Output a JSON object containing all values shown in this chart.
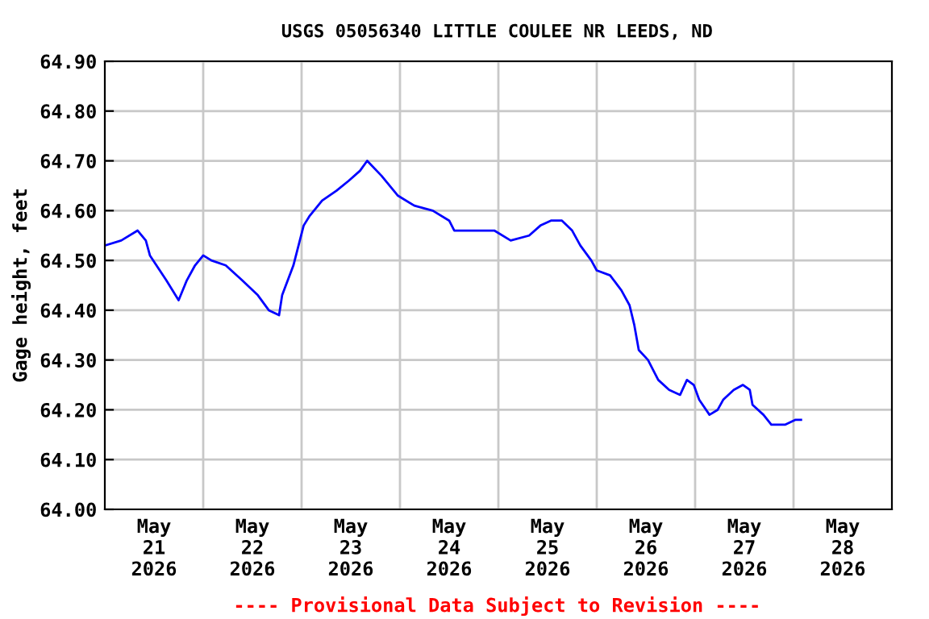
{
  "chart_data": {
    "type": "line",
    "title": "USGS 05056340 LITTLE COULEE NR LEEDS, ND",
    "ylabel": "Gage height, feet",
    "annotations": [
      "---- Provisional Data Subject to Revision ----"
    ],
    "x": [
      "2026-05-21T00:00",
      "2026-05-21T04:00",
      "2026-05-21T08:00",
      "2026-05-21T10:00",
      "2026-05-21T11:00",
      "2026-05-21T15:00",
      "2026-05-21T18:00",
      "2026-05-21T20:00",
      "2026-05-21T22:00",
      "2026-05-22T00:00",
      "2026-05-22T02:00",
      "2026-05-22T05:30",
      "2026-05-22T09:30",
      "2026-05-22T13:20",
      "2026-05-22T16:00",
      "2026-05-22T18:30",
      "2026-05-22T19:15",
      "2026-05-22T22:00",
      "2026-05-23T00:30",
      "2026-05-23T02:00",
      "2026-05-23T05:00",
      "2026-05-23T08:30",
      "2026-05-23T11:30",
      "2026-05-23T14:15",
      "2026-05-23T16:00",
      "2026-05-23T19:30",
      "2026-05-23T23:30",
      "2026-05-24T03:30",
      "2026-05-24T08:00",
      "2026-05-24T12:00",
      "2026-05-24T13:15",
      "2026-05-24T20:30",
      "2026-05-24T23:00",
      "2026-05-25T03:00",
      "2026-05-25T07:30",
      "2026-05-25T10:15",
      "2026-05-25T12:50",
      "2026-05-25T15:30",
      "2026-05-25T18:00",
      "2026-05-25T20:00",
      "2026-05-25T22:40",
      "2026-05-26T00:00",
      "2026-05-26T03:15",
      "2026-05-26T06:00",
      "2026-05-26T08:00",
      "2026-05-26T09:10",
      "2026-05-26T10:15",
      "2026-05-26T12:30",
      "2026-05-26T15:00",
      "2026-05-26T17:40",
      "2026-05-26T20:20",
      "2026-05-26T22:00",
      "2026-05-26T23:40",
      "2026-05-27T01:00",
      "2026-05-27T03:30",
      "2026-05-27T05:30",
      "2026-05-27T06:50",
      "2026-05-27T09:25",
      "2026-05-27T11:40",
      "2026-05-27T13:20",
      "2026-05-27T14:00",
      "2026-05-27T16:40",
      "2026-05-27T18:35",
      "2026-05-27T21:55",
      "2026-05-28T00:30",
      "2026-05-28T01:50"
    ],
    "series": [
      {
        "color": "#0000ff",
        "values": [
          64.53,
          64.54,
          64.56,
          64.54,
          64.51,
          64.46,
          64.42,
          64.46,
          64.49,
          64.51,
          64.5,
          64.49,
          64.46,
          64.43,
          64.4,
          64.39,
          64.43,
          64.49,
          64.57,
          64.59,
          64.62,
          64.64,
          64.66,
          64.68,
          64.7,
          64.67,
          64.63,
          64.61,
          64.6,
          64.58,
          64.56,
          64.56,
          64.56,
          64.54,
          64.55,
          64.57,
          64.58,
          64.58,
          64.56,
          64.53,
          64.5,
          64.48,
          64.47,
          64.44,
          64.41,
          64.37,
          64.32,
          64.3,
          64.26,
          64.24,
          64.23,
          64.26,
          64.25,
          64.22,
          64.19,
          64.2,
          64.22,
          64.24,
          64.25,
          64.24,
          64.21,
          64.19,
          64.17,
          64.17,
          64.18,
          64.18
        ]
      }
    ],
    "xlim": [
      "2026-05-21T00:00",
      "2026-05-29T00:00"
    ],
    "xticks": [
      {
        "value": "2026-05-21T12:00",
        "label": "May\n21\n2026"
      },
      {
        "value": "2026-05-22T12:00",
        "label": "May\n22\n2026"
      },
      {
        "value": "2026-05-23T12:00",
        "label": "May\n23\n2026"
      },
      {
        "value": "2026-05-24T12:00",
        "label": "May\n24\n2026"
      },
      {
        "value": "2026-05-25T12:00",
        "label": "May\n25\n2026"
      },
      {
        "value": "2026-05-26T12:00",
        "label": "May\n26\n2026"
      },
      {
        "value": "2026-05-27T12:00",
        "label": "May\n27\n2026"
      },
      {
        "value": "2026-05-28T12:00",
        "label": "May\n28\n2026"
      },
      {
        "value": "2026-05-22T00:00:00",
        "label": null
      },
      {
        "value": "2026-05-23T00:00:00",
        "label": null
      },
      {
        "value": "2026-05-24T00:00:00",
        "label": null
      },
      {
        "value": "2026-05-25T00:00:00",
        "label": null
      },
      {
        "value": "2026-05-26T00:00:00",
        "label": null
      },
      {
        "value": "2026-05-27T00:00:00",
        "label": null
      },
      {
        "value": "2026-05-28T00:00:00",
        "label": null
      }
    ],
    "ylim": [
      64.0,
      64.9
    ],
    "yticks": [
      {
        "value": 64.0,
        "label": "64.00"
      },
      {
        "value": 64.1,
        "label": "64.10"
      },
      {
        "value": 64.2,
        "label": "64.20"
      },
      {
        "value": 64.3,
        "label": "64.30"
      },
      {
        "value": 64.4,
        "label": "64.40"
      },
      {
        "value": 64.5,
        "label": "64.50"
      },
      {
        "value": 64.6,
        "label": "64.60"
      },
      {
        "value": 64.7,
        "label": "64.70"
      },
      {
        "value": 64.8,
        "label": "64.80"
      },
      {
        "value": 64.9,
        "label": "64.90"
      }
    ],
    "grid": true,
    "line_style": "solid"
  }
}
